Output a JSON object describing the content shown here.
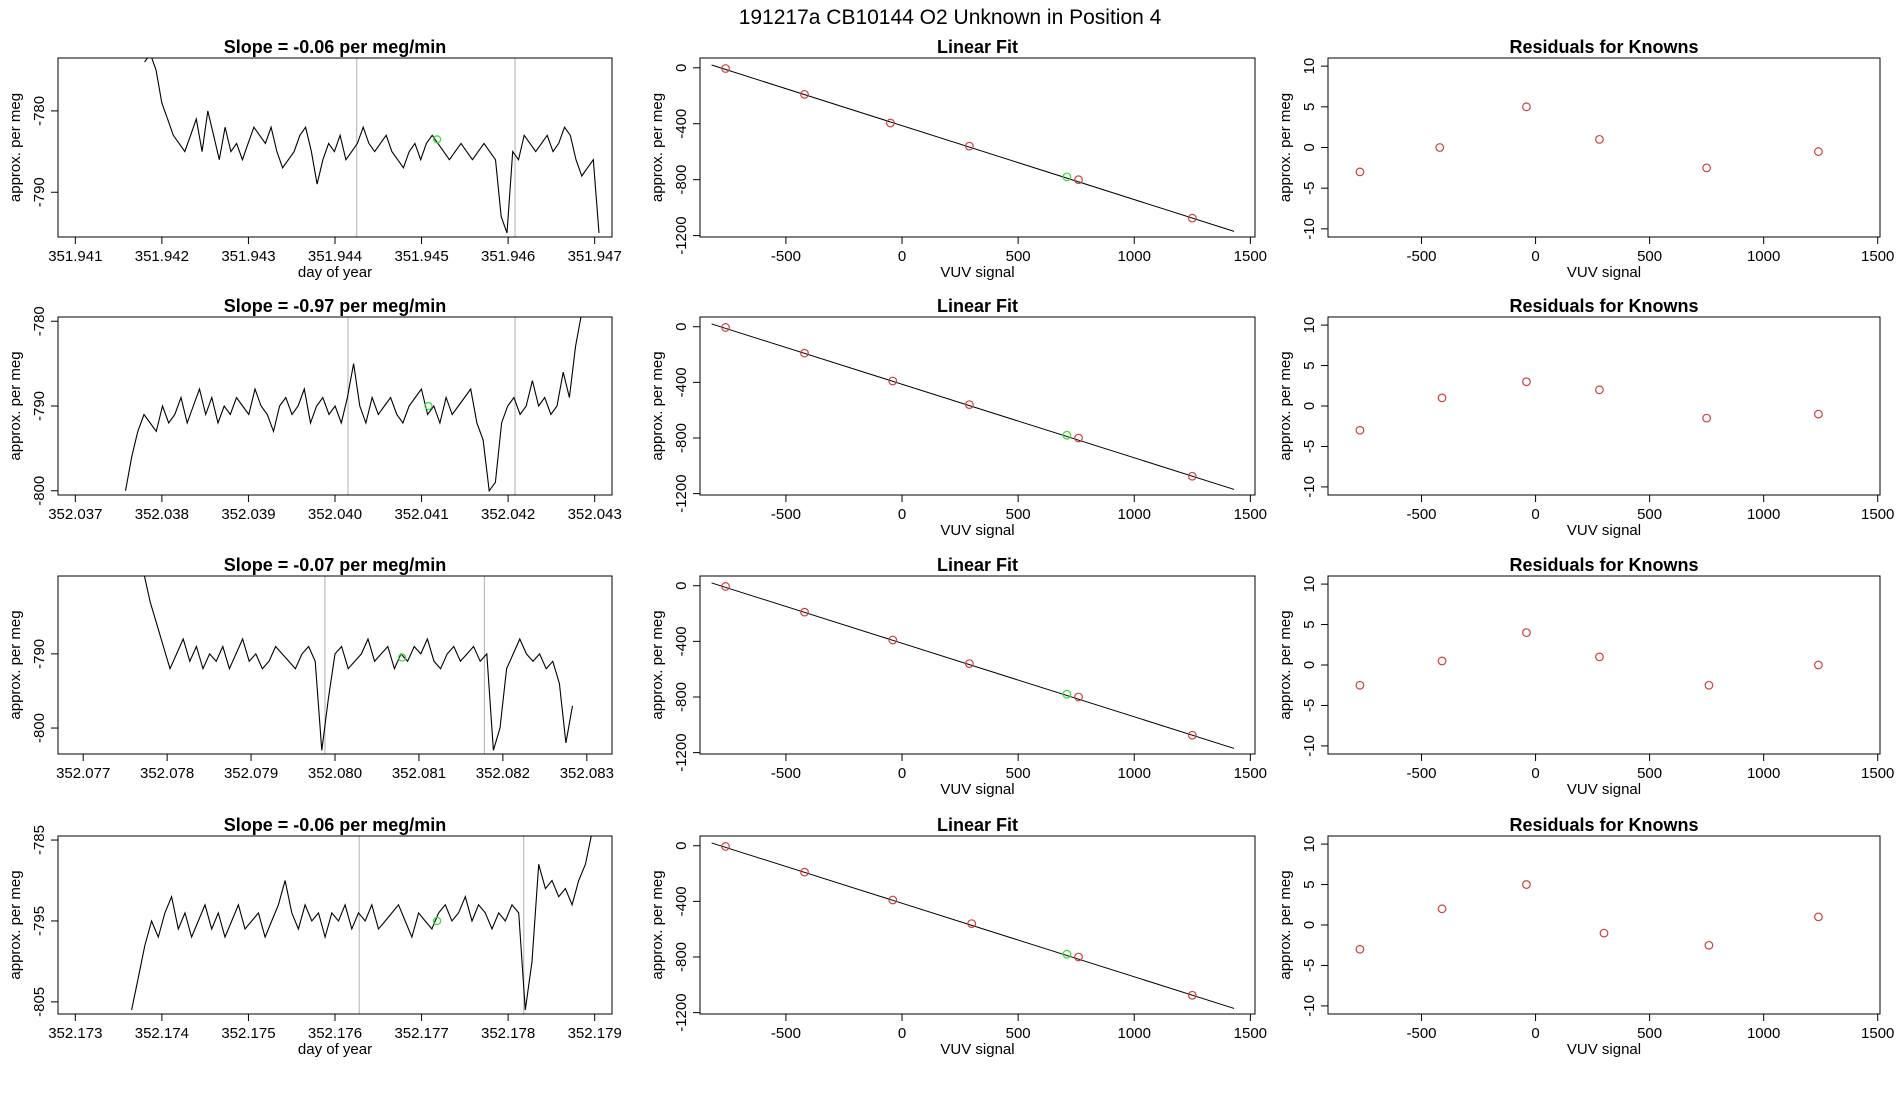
{
  "figure": {
    "title": "191217a      CB10144    O2 Unknown in Position  4",
    "colors": {
      "known": "#cd4040",
      "unknown": "#33dd33",
      "trace": "#000000",
      "vline": "#bdbdbd"
    }
  },
  "chart_data": [
    {
      "type": "line",
      "title": "Slope =  -0.06  per meg/min",
      "xlabel": "day of year",
      "ylabel": "approx. per meg",
      "xlim": [
        351.9408,
        351.9472
      ],
      "ylim": [
        -795.5,
        -773.5
      ],
      "xticks": [
        "351.941",
        "351.942",
        "351.943",
        "351.944",
        "351.945",
        "351.946",
        "351.947"
      ],
      "yticks": [
        "-780",
        "-790"
      ],
      "vlines": [
        351.94425,
        351.94608
      ],
      "start": 351.9418,
      "end": 351.94705,
      "trace": [
        -774,
        -773,
        -775,
        -779,
        -781,
        -783,
        -784,
        -785,
        -783,
        -781,
        -785,
        -780,
        -783,
        -786,
        -782,
        -785,
        -784,
        -786,
        -784,
        -782,
        -783,
        -784,
        -782,
        -785,
        -787,
        -786,
        -785,
        -783,
        -782,
        -785,
        -789,
        -786,
        -784,
        -785,
        -783,
        -786,
        -785,
        -784,
        -782,
        -784,
        -785,
        -784,
        -783,
        -785,
        -786,
        -787,
        -785,
        -784,
        -786,
        -784,
        -783,
        -784,
        -785,
        -786,
        -785,
        -784,
        -785,
        -786,
        -785,
        -784,
        -785,
        -786,
        -793,
        -795,
        -785,
        -786,
        -783,
        -784,
        -785,
        -784,
        -783,
        -785,
        -784,
        -782,
        -783,
        -786,
        -788,
        -787,
        -786,
        -795
      ],
      "unknown_point": {
        "x": 351.94518,
        "y": -783.5
      }
    },
    {
      "type": "line",
      "title": "Slope =  -0.97  per meg/min",
      "xlabel": "",
      "ylabel": "approx. per meg",
      "xlim": [
        352.0368,
        352.0432
      ],
      "ylim": [
        -800.5,
        -779.5
      ],
      "xticks": [
        "352.037",
        "352.038",
        "352.039",
        "352.040",
        "352.041",
        "352.042",
        "352.043"
      ],
      "yticks": [
        "-780",
        "-790",
        "-800"
      ],
      "vlines": [
        352.04015,
        352.04208
      ],
      "start": 352.03758,
      "end": 352.04285,
      "trace": [
        -800,
        -796,
        -793,
        -791,
        -792,
        -793,
        -790,
        -792,
        -791,
        -789,
        -792,
        -790,
        -788,
        -791,
        -789,
        -792,
        -790,
        -791,
        -789,
        -790,
        -791,
        -788,
        -790,
        -791,
        -793,
        -790,
        -789,
        -791,
        -790,
        -788,
        -792,
        -790,
        -789,
        -791,
        -790,
        -792,
        -789,
        -785,
        -790,
        -792,
        -789,
        -791,
        -790,
        -789,
        -791,
        -792,
        -790,
        -789,
        -788,
        -791,
        -790,
        -792,
        -789,
        -791,
        -790,
        -789,
        -788,
        -792,
        -794,
        -800,
        -799,
        -792,
        -790,
        -789,
        -791,
        -790,
        -787,
        -790,
        -789,
        -791,
        -790,
        -786,
        -789,
        -783,
        -779
      ],
      "unknown_point": {
        "x": 352.04108,
        "y": -790
      }
    },
    {
      "type": "line",
      "title": "Slope =  -0.07  per meg/min",
      "xlabel": "",
      "ylabel": "approx. per meg",
      "xlim": [
        352.0767,
        352.0833
      ],
      "ylim": [
        -803.5,
        -779.5
      ],
      "xticks": [
        "352.077",
        "352.078",
        "352.079",
        "352.080",
        "352.081",
        "352.082",
        "352.083"
      ],
      "yticks": [
        "-790",
        "-800"
      ],
      "vlines": [
        352.07988,
        352.08178
      ],
      "start": 352.07772,
      "end": 352.08283,
      "trace": [
        -779,
        -783,
        -786,
        -789,
        -792,
        -790,
        -788,
        -791,
        -789,
        -792,
        -790,
        -791,
        -789,
        -792,
        -790,
        -788,
        -791,
        -790,
        -792,
        -791,
        -789,
        -790,
        -791,
        -792,
        -790,
        -789,
        -791,
        -803,
        -796,
        -790,
        -789,
        -792,
        -791,
        -790,
        -788,
        -791,
        -790,
        -789,
        -792,
        -790,
        -791,
        -789,
        -790,
        -788,
        -791,
        -792,
        -790,
        -789,
        -791,
        -790,
        -789,
        -791,
        -790,
        -803,
        -800,
        -792,
        -790,
        -788,
        -790,
        -791,
        -790,
        -792,
        -791,
        -794,
        -802,
        -797
      ],
      "unknown_point": {
        "x": 352.0808,
        "y": -790.5
      }
    },
    {
      "type": "line",
      "title": "Slope =  -0.06  per meg/min",
      "xlabel": "day of year",
      "ylabel": "approx. per meg",
      "xlim": [
        352.1728,
        352.1792
      ],
      "ylim": [
        -806.5,
        -784.5
      ],
      "xticks": [
        "352.173",
        "352.174",
        "352.175",
        "352.176",
        "352.177",
        "352.178",
        "352.179"
      ],
      "yticks": [
        "-785",
        "-795",
        "-805"
      ],
      "vlines": [
        352.17628,
        352.17818
      ],
      "start": 352.17365,
      "end": 352.17897,
      "trace": [
        -806,
        -802,
        -798,
        -795,
        -797,
        -794,
        -792,
        -796,
        -794,
        -797,
        -795,
        -793,
        -796,
        -794,
        -797,
        -795,
        -793,
        -796,
        -795,
        -794,
        -797,
        -795,
        -793,
        -790,
        -794,
        -796,
        -793,
        -795,
        -794,
        -797,
        -794,
        -795,
        -793,
        -796,
        -794,
        -795,
        -793,
        -796,
        -795,
        -794,
        -793,
        -795,
        -797,
        -794,
        -795,
        -796,
        -794,
        -793,
        -795,
        -794,
        -792,
        -795,
        -793,
        -794,
        -796,
        -794,
        -795,
        -793,
        -794,
        -806,
        -800,
        -788,
        -791,
        -790,
        -792,
        -791,
        -793,
        -790,
        -788,
        -784
      ],
      "unknown_point": {
        "x": 352.17718,
        "y": -795
      }
    },
    {
      "type": "scatter",
      "title": "Linear Fit",
      "xlabel": "VUV signal",
      "ylabel": "approx. per meg",
      "xlim": [
        -870,
        1520
      ],
      "ylim": [
        -1210,
        70
      ],
      "xticks": [
        "-500",
        "0",
        "500",
        "1000",
        "1500"
      ],
      "yticks": [
        "0",
        "-400",
        "-800",
        "-1200"
      ],
      "knowns": {
        "x": [
          -760,
          -420,
          -50,
          290,
          760,
          1250
        ],
        "y": [
          -5,
          -190,
          -395,
          -560,
          -800,
          -1075
        ]
      },
      "unknown": {
        "x": 710,
        "y": -780
      },
      "fit_line": {
        "x": [
          -820,
          1430
        ],
        "y": [
          20,
          -1170
        ]
      }
    },
    {
      "type": "scatter",
      "title": "Linear Fit",
      "xlabel": "VUV signal",
      "ylabel": "approx. per meg",
      "xlim": [
        -870,
        1520
      ],
      "ylim": [
        -1210,
        70
      ],
      "xticks": [
        "-500",
        "0",
        "500",
        "1000",
        "1500"
      ],
      "yticks": [
        "0",
        "-400",
        "-800",
        "-1200"
      ],
      "knowns": {
        "x": [
          -760,
          -420,
          -40,
          290,
          760,
          1250
        ],
        "y": [
          -5,
          -190,
          -390,
          -560,
          -800,
          -1075
        ]
      },
      "unknown": {
        "x": 710,
        "y": -780
      },
      "fit_line": {
        "x": [
          -820,
          1430
        ],
        "y": [
          20,
          -1170
        ]
      }
    },
    {
      "type": "scatter",
      "title": "Linear Fit",
      "xlabel": "VUV signal",
      "ylabel": "approx. per meg",
      "xlim": [
        -870,
        1520
      ],
      "ylim": [
        -1210,
        70
      ],
      "xticks": [
        "-500",
        "0",
        "500",
        "1000",
        "1500"
      ],
      "yticks": [
        "0",
        "-400",
        "-800",
        "-1200"
      ],
      "knowns": {
        "x": [
          -760,
          -420,
          -40,
          290,
          760,
          1250
        ],
        "y": [
          -5,
          -190,
          -390,
          -560,
          -800,
          -1075
        ]
      },
      "unknown": {
        "x": 710,
        "y": -780
      },
      "fit_line": {
        "x": [
          -820,
          1430
        ],
        "y": [
          20,
          -1170
        ]
      }
    },
    {
      "type": "scatter",
      "title": "Linear Fit",
      "xlabel": "VUV signal",
      "ylabel": "approx. per meg",
      "xlim": [
        -870,
        1520
      ],
      "ylim": [
        -1210,
        70
      ],
      "xticks": [
        "-500",
        "0",
        "500",
        "1000",
        "1500"
      ],
      "yticks": [
        "0",
        "-400",
        "-800",
        "-1200"
      ],
      "knowns": {
        "x": [
          -760,
          -420,
          -40,
          300,
          760,
          1250
        ],
        "y": [
          -5,
          -190,
          -390,
          -560,
          -800,
          -1075
        ]
      },
      "unknown": {
        "x": 710,
        "y": -780
      },
      "fit_line": {
        "x": [
          -820,
          1430
        ],
        "y": [
          20,
          -1170
        ]
      }
    },
    {
      "type": "scatter",
      "title": "Residuals for Knowns",
      "xlabel": "VUV signal",
      "ylabel": "approx. per meg",
      "xlim": [
        -910,
        1510
      ],
      "ylim": [
        -11,
        11
      ],
      "xticks": [
        "-500",
        "0",
        "500",
        "1000",
        "1500"
      ],
      "yticks": [
        "10",
        "5",
        "0",
        "-5",
        "-10"
      ],
      "points": {
        "x": [
          -770,
          -420,
          -40,
          280,
          750,
          1240
        ],
        "y": [
          -3,
          0,
          5,
          1,
          -2.5,
          -0.5
        ]
      }
    },
    {
      "type": "scatter",
      "title": "Residuals for Knowns",
      "xlabel": "VUV signal",
      "ylabel": "approx. per meg",
      "xlim": [
        -910,
        1510
      ],
      "ylim": [
        -11,
        11
      ],
      "xticks": [
        "-500",
        "0",
        "500",
        "1000",
        "1500"
      ],
      "yticks": [
        "10",
        "5",
        "0",
        "-5",
        "-10"
      ],
      "points": {
        "x": [
          -770,
          -410,
          -40,
          280,
          750,
          1240
        ],
        "y": [
          -3,
          1,
          3,
          2,
          -1.5,
          -1
        ]
      }
    },
    {
      "type": "scatter",
      "title": "Residuals for Knowns",
      "xlabel": "VUV signal",
      "ylabel": "approx. per meg",
      "xlim": [
        -910,
        1510
      ],
      "ylim": [
        -11,
        11
      ],
      "xticks": [
        "-500",
        "0",
        "500",
        "1000",
        "1500"
      ],
      "yticks": [
        "10",
        "5",
        "0",
        "-5",
        "-10"
      ],
      "points": {
        "x": [
          -770,
          -410,
          -40,
          280,
          760,
          1240
        ],
        "y": [
          -2.5,
          0.5,
          4,
          1,
          -2.5,
          0
        ]
      }
    },
    {
      "type": "scatter",
      "title": "Residuals for Knowns",
      "xlabel": "VUV signal",
      "ylabel": "approx. per meg",
      "xlim": [
        -910,
        1510
      ],
      "ylim": [
        -11,
        11
      ],
      "xticks": [
        "-500",
        "0",
        "500",
        "1000",
        "1500"
      ],
      "yticks": [
        "10",
        "5",
        "0",
        "-5",
        "-10"
      ],
      "points": {
        "x": [
          -770,
          -410,
          -40,
          300,
          760,
          1240
        ],
        "y": [
          -3,
          2,
          5,
          -1,
          -2.5,
          1
        ]
      }
    }
  ]
}
